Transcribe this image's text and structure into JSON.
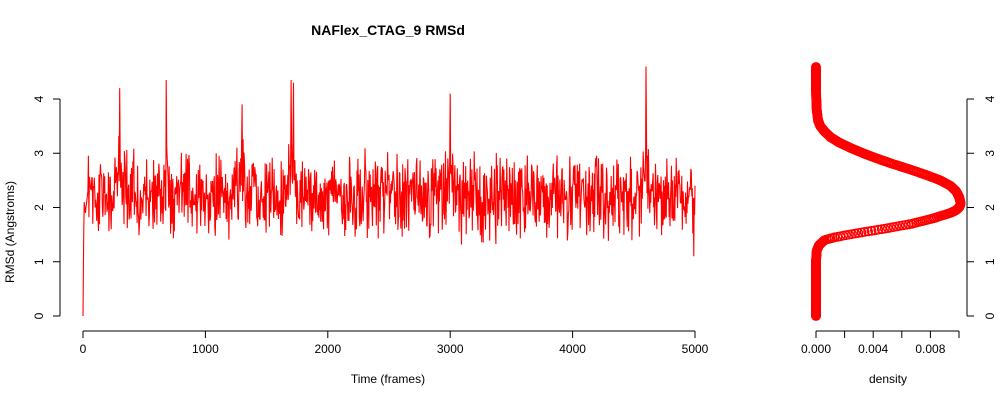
{
  "chart_data": [
    {
      "type": "line",
      "title": "NAFlex_CTAG_9 RMSd",
      "xlabel": "Time (frames)",
      "ylabel": "RMSd (Angstroms)",
      "xlim": [
        0,
        5000
      ],
      "ylim": [
        0,
        4.6
      ],
      "xticks": [
        0,
        1000,
        2000,
        3000,
        4000,
        5000
      ],
      "yticks": [
        0,
        1,
        2,
        3,
        4
      ],
      "color": "#ff0000",
      "grid": false,
      "series": [
        {
          "description_of_trace": "approx. 5000 frames; starts at 0, rises to ~2.2 in first frames, fluctuates 1.3-3.4 around mean ~2.2; spikes at listed frames",
          "x": [
            0,
            5,
            10,
            20,
            40,
            60,
            100,
            150,
            200,
            250,
            300,
            350,
            400,
            450,
            500,
            550,
            600,
            650,
            680,
            700,
            750,
            800,
            850,
            900,
            950,
            1000,
            1050,
            1100,
            1150,
            1200,
            1250,
            1300,
            1350,
            1400,
            1450,
            1500,
            1550,
            1600,
            1650,
            1700,
            1720,
            1750,
            1800,
            1850,
            1900,
            1950,
            2000,
            2050,
            2100,
            2150,
            2200,
            2250,
            2300,
            2350,
            2400,
            2450,
            2500,
            2550,
            2600,
            2650,
            2700,
            2750,
            2800,
            2850,
            2900,
            2950,
            3000,
            3050,
            3100,
            3150,
            3200,
            3250,
            3300,
            3350,
            3400,
            3450,
            3500,
            3550,
            3600,
            3650,
            3700,
            3750,
            3800,
            3850,
            3900,
            3950,
            4000,
            4050,
            4100,
            4150,
            4200,
            4250,
            4300,
            4350,
            4400,
            4450,
            4500,
            4550,
            4600,
            4650,
            4700,
            4750,
            4800,
            4850,
            4900,
            4950,
            4990,
            5000
          ],
          "y": [
            0,
            1.3,
            2.1,
            1.9,
            2.3,
            2.4,
            2.0,
            2.6,
            2.1,
            2.3,
            4.2,
            2.2,
            2.5,
            1.9,
            2.3,
            2.1,
            2.4,
            2.2,
            4.35,
            2.0,
            2.3,
            2.5,
            2.1,
            2.2,
            2.4,
            2.0,
            2.3,
            2.6,
            1.9,
            2.2,
            2.4,
            3.9,
            2.3,
            2.5,
            2.2,
            2.8,
            2.4,
            2.1,
            2.6,
            4.35,
            4.3,
            2.5,
            2.2,
            2.4,
            1.9,
            2.3,
            2.1,
            2.5,
            2.2,
            2.4,
            2.0,
            2.3,
            2.5,
            2.1,
            2.4,
            2.2,
            2.6,
            2.3,
            2.1,
            2.5,
            2.2,
            2.4,
            2.0,
            2.3,
            2.5,
            2.2,
            4.1,
            2.4,
            2.1,
            2.3,
            2.5,
            2.2,
            2.4,
            2.1,
            2.3,
            2.5,
            2.2,
            2.4,
            2.0,
            2.3,
            2.1,
            2.4,
            2.2,
            2.5,
            2.1,
            2.3,
            2.4,
            2.2,
            2.0,
            2.3,
            2.5,
            2.2,
            1.9,
            2.4,
            2.1,
            2.3,
            2.2,
            2.4,
            4.6,
            2.3,
            2.1,
            2.4,
            2.2,
            2.5,
            2.3,
            2.2,
            1.1,
            2.4
          ]
        }
      ]
    },
    {
      "type": "line",
      "xlabel": "density",
      "xlim": [
        0,
        0.01
      ],
      "xticks": [
        "0.000",
        "0.004",
        "0.008"
      ],
      "xticks_values": [
        0,
        0.004,
        0.008
      ],
      "minor_xticks_values": [
        0.002,
        0.006,
        0.01
      ],
      "ylim": [
        0,
        4.6
      ],
      "yticks": [
        0,
        1,
        2,
        3,
        4
      ],
      "y_axis_side": "right",
      "color": "#ff0000",
      "marker": "circle",
      "series": [
        {
          "y": [
            4.6,
            4.4,
            4.2,
            4.0,
            3.8,
            3.6,
            3.5,
            3.4,
            3.3,
            3.2,
            3.1,
            3.0,
            2.9,
            2.8,
            2.7,
            2.6,
            2.5,
            2.4,
            2.3,
            2.2,
            2.1,
            2.05,
            2.0,
            1.95,
            1.9,
            1.8,
            1.7,
            1.6,
            1.55,
            1.5,
            1.45,
            1.4,
            1.3,
            1.2,
            1.0,
            0.8,
            0.6,
            0.4,
            0.2,
            0.0
          ],
          "density": [
            0.0,
            0.0,
            0.0,
            2e-05,
            5e-05,
            0.00015,
            0.0003,
            0.0006,
            0.001,
            0.0016,
            0.0024,
            0.0033,
            0.0043,
            0.0054,
            0.0066,
            0.0077,
            0.0087,
            0.0094,
            0.0098,
            0.01,
            0.0101,
            0.0101,
            0.01,
            0.0098,
            0.0094,
            0.0082,
            0.0067,
            0.0046,
            0.0034,
            0.0023,
            0.0013,
            0.0006,
            0.0002,
            5e-05,
            0.0,
            0.0,
            0.0,
            0.0,
            0.0,
            0.0
          ]
        }
      ]
    }
  ]
}
